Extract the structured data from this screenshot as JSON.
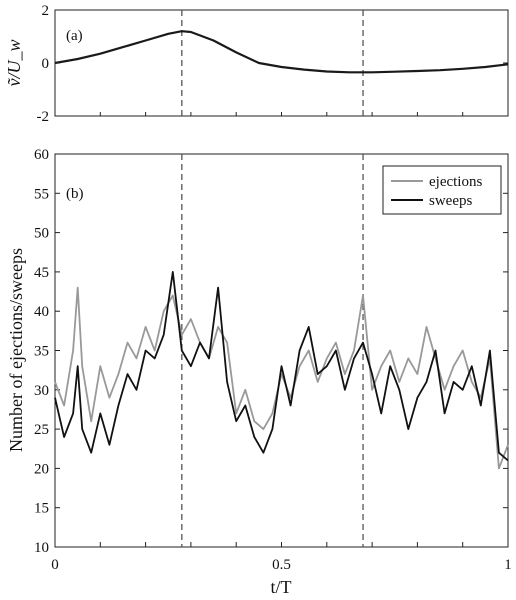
{
  "chart_data": [
    {
      "type": "line",
      "panel_label": "(a)",
      "xlabel": "",
      "ylabel": "ṽ/U_w",
      "xlim": [
        0,
        1
      ],
      "ylim": [
        -2,
        2
      ],
      "yticks": [
        -2,
        0,
        2
      ],
      "ytick_labels": [
        "-2",
        "0",
        "2"
      ],
      "vlines": [
        0.28,
        0.68
      ],
      "series": [
        {
          "color": "#1a1a1a",
          "x": [
            0,
            0.05,
            0.1,
            0.15,
            0.2,
            0.25,
            0.28,
            0.3,
            0.35,
            0.4,
            0.45,
            0.5,
            0.55,
            0.6,
            0.65,
            0.7,
            0.75,
            0.8,
            0.85,
            0.9,
            0.95,
            1.0
          ],
          "values": [
            0.0,
            0.15,
            0.35,
            0.6,
            0.85,
            1.1,
            1.2,
            1.17,
            0.85,
            0.4,
            0.0,
            -0.15,
            -0.25,
            -0.32,
            -0.35,
            -0.35,
            -0.33,
            -0.3,
            -0.27,
            -0.22,
            -0.15,
            -0.05
          ]
        }
      ]
    },
    {
      "type": "line",
      "panel_label": "(b)",
      "xlabel": "t/T",
      "ylabel": "Number of ejections/sweeps",
      "xlim": [
        0,
        1
      ],
      "ylim": [
        10,
        60
      ],
      "xticks": [
        0,
        0.5,
        1
      ],
      "xtick_labels": [
        "0",
        "0.5",
        "1"
      ],
      "yticks": [
        10,
        15,
        20,
        25,
        30,
        35,
        40,
        45,
        50,
        55,
        60
      ],
      "ytick_labels": [
        "10",
        "15",
        "20",
        "25",
        "30",
        "35",
        "40",
        "45",
        "50",
        "55",
        "60"
      ],
      "vlines": [
        0.28,
        0.68
      ],
      "legend_position": "top-right",
      "series": [
        {
          "name": "ejections",
          "color": "#999999",
          "x": [
            0,
            0.02,
            0.04,
            0.05,
            0.06,
            0.08,
            0.1,
            0.12,
            0.14,
            0.16,
            0.18,
            0.2,
            0.22,
            0.24,
            0.26,
            0.28,
            0.3,
            0.32,
            0.34,
            0.36,
            0.38,
            0.4,
            0.42,
            0.44,
            0.46,
            0.48,
            0.5,
            0.52,
            0.54,
            0.56,
            0.58,
            0.6,
            0.62,
            0.64,
            0.66,
            0.68,
            0.7,
            0.72,
            0.74,
            0.76,
            0.78,
            0.8,
            0.82,
            0.84,
            0.86,
            0.88,
            0.9,
            0.92,
            0.94,
            0.96,
            0.98,
            1.0
          ],
          "values": [
            31,
            28,
            35,
            43,
            33,
            26,
            33,
            29,
            32,
            36,
            34,
            38,
            35,
            40,
            42,
            37,
            39,
            36,
            34,
            38,
            36,
            27,
            30,
            26,
            25,
            27,
            32,
            29,
            33,
            35,
            31,
            34,
            36,
            32,
            35,
            42,
            30,
            33,
            35,
            31,
            34,
            32,
            38,
            34,
            30,
            33,
            35,
            31,
            29,
            34,
            20,
            23
          ]
        },
        {
          "name": "sweeps",
          "color": "#111111",
          "x": [
            0,
            0.02,
            0.04,
            0.05,
            0.06,
            0.08,
            0.1,
            0.12,
            0.14,
            0.16,
            0.18,
            0.2,
            0.22,
            0.24,
            0.26,
            0.28,
            0.3,
            0.32,
            0.34,
            0.36,
            0.38,
            0.4,
            0.42,
            0.44,
            0.46,
            0.48,
            0.5,
            0.52,
            0.54,
            0.56,
            0.58,
            0.6,
            0.62,
            0.64,
            0.66,
            0.68,
            0.7,
            0.72,
            0.74,
            0.76,
            0.78,
            0.8,
            0.82,
            0.84,
            0.86,
            0.88,
            0.9,
            0.92,
            0.94,
            0.96,
            0.98,
            1.0
          ],
          "values": [
            29,
            24,
            27,
            33,
            25,
            22,
            27,
            23,
            28,
            32,
            30,
            35,
            34,
            37,
            45,
            35,
            33,
            36,
            34,
            43,
            31,
            26,
            28,
            24,
            22,
            25,
            33,
            28,
            35,
            38,
            32,
            33,
            35,
            30,
            34,
            36,
            32,
            27,
            33,
            30,
            25,
            29,
            31,
            35,
            27,
            31,
            30,
            33,
            28,
            35,
            22,
            21
          ]
        }
      ]
    }
  ]
}
